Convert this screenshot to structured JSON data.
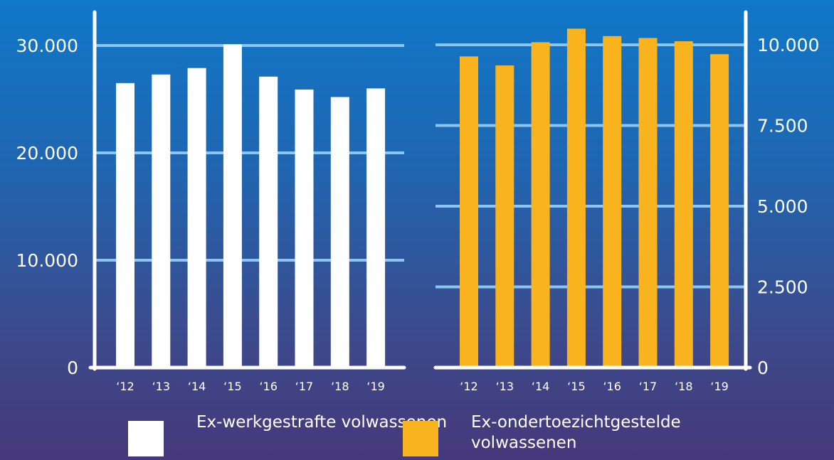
{
  "chart_data": [
    {
      "type": "bar",
      "categories": [
        "‘12",
        "‘13",
        "‘14",
        "‘15",
        "‘16",
        "‘17",
        "‘18",
        "‘19"
      ],
      "series": [
        {
          "name": "Ex-werkgestrafte volwassenen",
          "values": [
            26500,
            27300,
            27900,
            30100,
            27100,
            25900,
            25200,
            26000
          ]
        }
      ],
      "ylim": [
        0,
        30000
      ],
      "yticks": [
        0,
        10000,
        20000,
        30000
      ],
      "ytick_labels": [
        "0",
        "10.000",
        "20.000",
        "30.000"
      ],
      "axis_side": "left",
      "grid": true,
      "title": "",
      "xlabel": "",
      "ylabel": ""
    },
    {
      "type": "bar",
      "categories": [
        "‘12",
        "‘13",
        "‘14",
        "‘15",
        "‘16",
        "‘17",
        "‘18",
        "‘19"
      ],
      "series": [
        {
          "name": "Ex-ondertoezichtgestelde volwassenen",
          "values": [
            9640,
            9360,
            10080,
            10500,
            10270,
            10210,
            10110,
            9710
          ]
        }
      ],
      "ylim": [
        0,
        10000
      ],
      "yticks": [
        0,
        2500,
        5000,
        7500,
        10000
      ],
      "ytick_labels": [
        "0",
        "2.500",
        "5.000",
        "7.500",
        "10.000"
      ],
      "axis_side": "right",
      "grid": true,
      "title": "",
      "xlabel": "",
      "ylabel": ""
    }
  ],
  "colors": {
    "series_left": "#ffffff",
    "series_right": "#f9b31f",
    "grid": "#8cc6f0",
    "axis": "#ffffff",
    "text": "#ffffff"
  },
  "legend": {
    "placement": "bottom",
    "items": [
      {
        "label": "Ex-werkgestrafte volwassenen",
        "color": "#ffffff"
      },
      {
        "label": "Ex-ondertoezichtgestelde volwassenen",
        "color": "#f9b31f"
      }
    ]
  }
}
